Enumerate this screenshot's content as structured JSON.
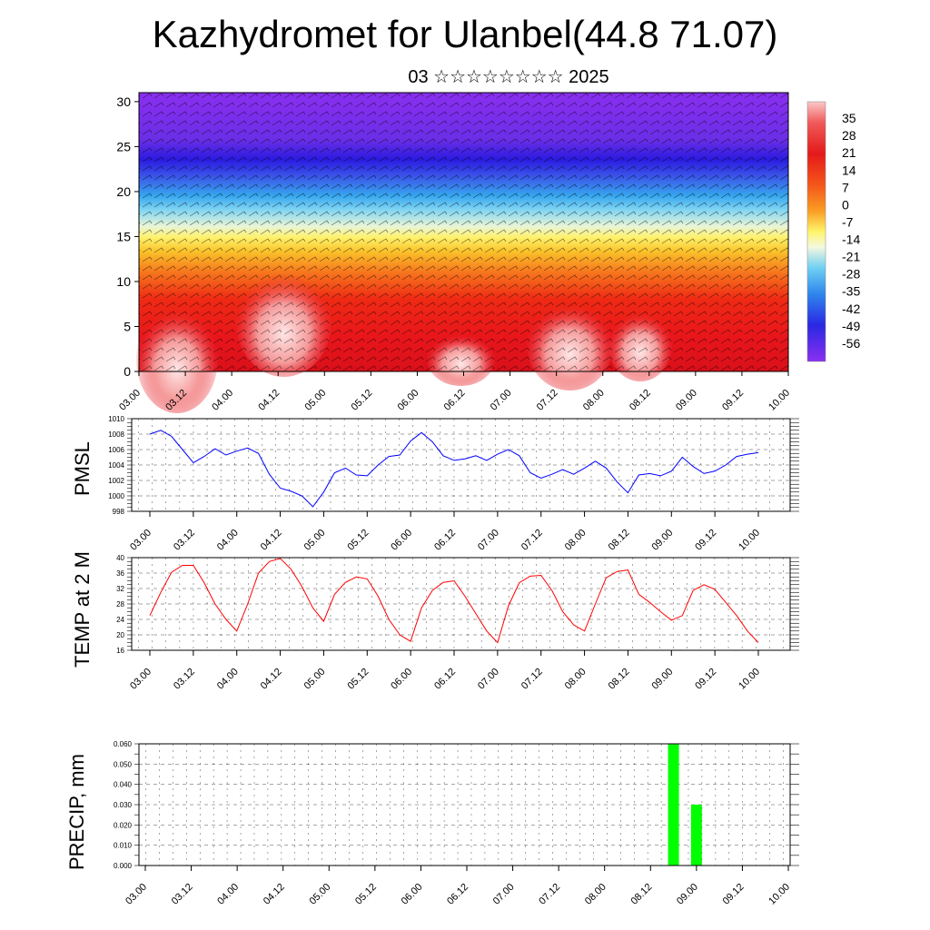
{
  "title": "Kazhydromet for Ulanbel(44.8 71.07)",
  "subtitle": "03 ☆☆☆☆☆☆☆☆ 2025",
  "x_ticks": [
    "03.00",
    "03.12",
    "04.00",
    "04.12",
    "05.00",
    "05.12",
    "06.00",
    "06.12",
    "07.00",
    "07.12",
    "08.00",
    "08.12",
    "09.00",
    "09.12",
    "10.00"
  ],
  "colors": {
    "pmsl_line": "#0000ff",
    "temp_line": "#ff0000",
    "precip_bar": "#00ff00",
    "grid": "#000000"
  },
  "chart_data": [
    {
      "type": "heatmap",
      "name": "temperature_cross_section",
      "ylim": [
        0,
        31
      ],
      "y_ticks": [
        0,
        5,
        10,
        15,
        20,
        25,
        30
      ],
      "colorbar_labels": [
        "35",
        "28",
        "21",
        "14",
        "7",
        "0",
        "-7",
        "-14",
        "-21",
        "-28",
        "-35",
        "-42",
        "-49",
        "-56"
      ],
      "colorbar_range": [
        -63,
        42
      ],
      "overlay": "wind barbs"
    },
    {
      "type": "line",
      "ylabel": "PMSL",
      "ylim": [
        998,
        1010
      ],
      "y_ticks": [
        998,
        1000,
        1002,
        1004,
        1006,
        1008,
        1010
      ],
      "x": [
        0,
        3,
        6,
        9,
        12,
        15,
        18,
        21,
        24,
        27,
        30,
        33,
        36,
        39,
        42,
        45,
        48,
        51,
        54,
        57,
        60,
        63,
        66,
        69,
        72,
        75,
        78,
        81,
        84,
        87,
        90,
        93,
        96,
        99,
        102,
        105,
        108,
        111,
        114,
        117,
        120,
        123,
        126,
        129,
        132,
        135,
        138,
        141,
        144,
        147,
        150,
        153,
        156,
        159,
        162,
        165,
        168
      ],
      "values": [
        1008,
        1008.5,
        1007.7,
        1006,
        1004.3,
        1005.1,
        1006.1,
        1005.3,
        1005.8,
        1006.2,
        1005.5,
        1002.8,
        1001,
        1000.6,
        1000,
        998.6,
        1000.5,
        1003,
        1003.6,
        1002.7,
        1002.6,
        1004,
        1005.1,
        1005.3,
        1007.1,
        1008.2,
        1007,
        1005.2,
        1004.6,
        1004.8,
        1005.2,
        1004.6,
        1005.4,
        1006,
        1005.2,
        1003,
        1002.3,
        1002.8,
        1003.4,
        1002.8,
        1003.6,
        1004.5,
        1003.6,
        1001.8,
        1000.4,
        1002.7,
        1002.9,
        1002.6,
        1003.2,
        1005,
        1003.8,
        1002.9,
        1003.2,
        1004,
        1005.1,
        1005.4,
        1005.6
      ]
    },
    {
      "type": "line",
      "ylabel": "TEMP at 2 M",
      "ylim": [
        16,
        40
      ],
      "y_ticks": [
        16,
        20,
        24,
        28,
        32,
        36,
        40
      ],
      "x": [
        0,
        3,
        6,
        9,
        12,
        15,
        18,
        21,
        24,
        27,
        30,
        33,
        36,
        39,
        42,
        45,
        48,
        51,
        54,
        57,
        60,
        63,
        66,
        69,
        72,
        75,
        78,
        81,
        84,
        87,
        90,
        93,
        96,
        99,
        102,
        105,
        108,
        111,
        114,
        117,
        120,
        123,
        126,
        129,
        132,
        135,
        138,
        141,
        144,
        147,
        150,
        153,
        156,
        159,
        162,
        165,
        168
      ],
      "values": [
        25,
        31,
        36.2,
        38,
        38,
        33.5,
        28,
        24,
        21,
        28,
        36,
        39,
        39.8,
        37,
        32.5,
        27,
        23.5,
        30.5,
        33.6,
        35,
        34.5,
        30,
        24,
        20,
        18.3,
        27,
        31.5,
        33.6,
        34,
        30,
        25.5,
        21,
        18,
        27.5,
        33.5,
        35.2,
        35.4,
        31.5,
        26,
        22.6,
        21,
        28,
        34.8,
        36.4,
        36.8,
        30.5,
        28.4,
        26,
        23.8,
        25,
        31.5,
        33,
        31.8,
        28.4,
        25,
        21,
        18
      ]
    },
    {
      "type": "bar",
      "ylabel": "PRECIP, mm",
      "ylim": [
        0,
        0.06
      ],
      "y_ticks": [
        "0.000",
        "0.010",
        "0.020",
        "0.030",
        "0.040",
        "0.050",
        "0.060"
      ],
      "x": [
        138,
        144
      ],
      "values": [
        0.06,
        0.03
      ]
    }
  ]
}
